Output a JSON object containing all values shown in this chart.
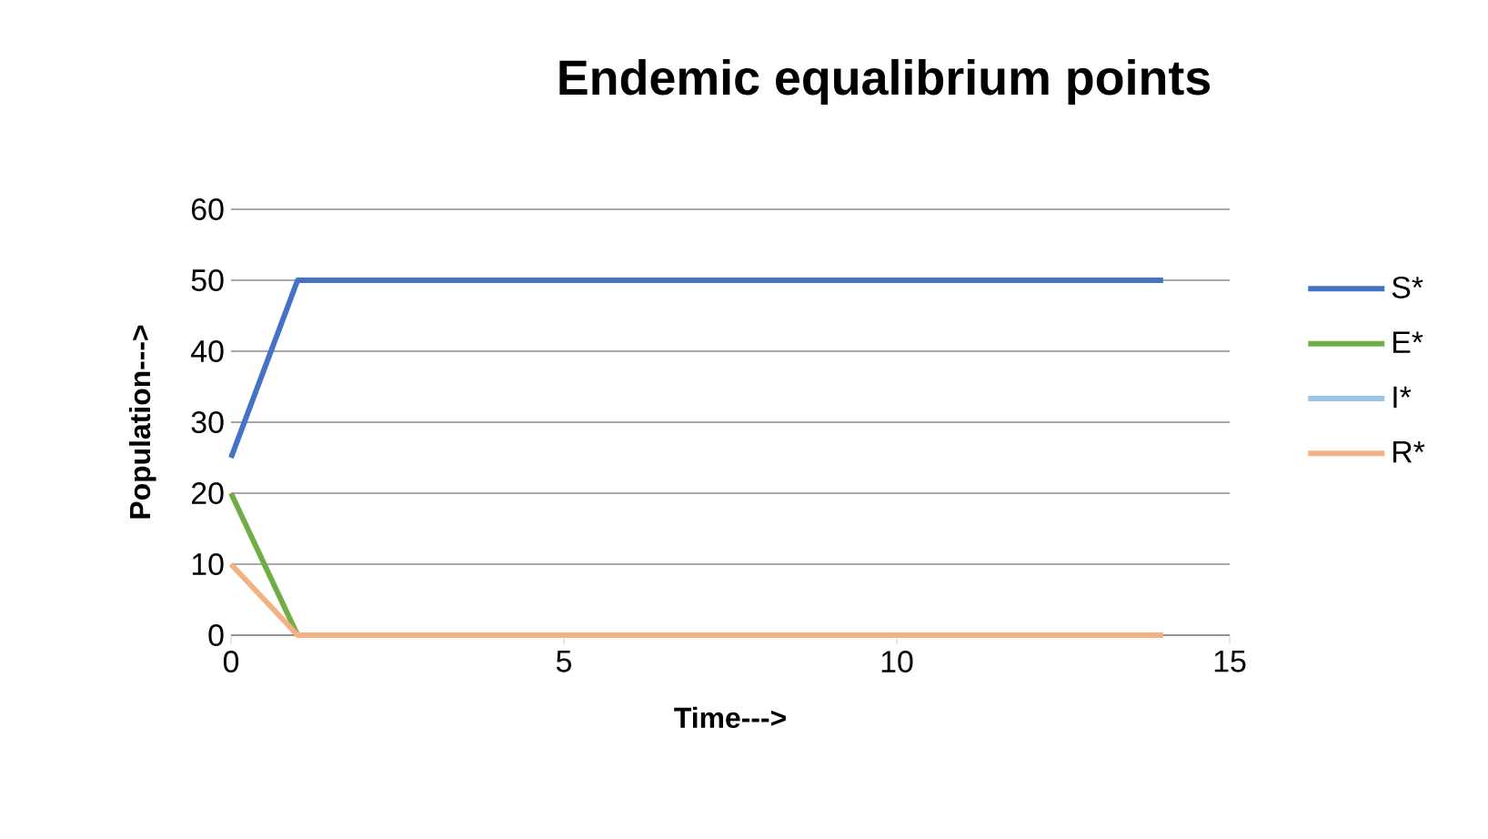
{
  "chart_data": {
    "type": "line",
    "title": "Endemic equalibrium points",
    "xlabel": "Time--->",
    "ylabel": "Population--->",
    "x": [
      0,
      1,
      2,
      3,
      4,
      5,
      6,
      7,
      8,
      9,
      10,
      11,
      12,
      13,
      14
    ],
    "series": [
      {
        "name": "S*",
        "color": "#4472c4",
        "values": [
          25,
          50,
          50,
          50,
          50,
          50,
          50,
          50,
          50,
          50,
          50,
          50,
          50,
          50,
          50
        ]
      },
      {
        "name": "E*",
        "color": "#70ad47",
        "values": [
          20,
          0,
          null,
          null,
          null,
          null,
          null,
          null,
          null,
          null,
          null,
          null,
          null,
          null,
          null
        ]
      },
      {
        "name": "I*",
        "color": "#9dc3e6",
        "values": [
          null,
          null,
          null,
          null,
          null,
          null,
          null,
          null,
          null,
          null,
          null,
          null,
          null,
          null,
          null
        ]
      },
      {
        "name": "R*",
        "color": "#f4b183",
        "values": [
          10,
          0,
          0,
          0,
          0,
          0,
          0,
          0,
          0,
          0,
          0,
          0,
          0,
          0,
          0
        ]
      }
    ],
    "xlim": [
      0,
      15
    ],
    "xticks": [
      0,
      5,
      10,
      15
    ],
    "ylim": [
      0,
      60
    ],
    "yticks": [
      0,
      10,
      20,
      30,
      40,
      50,
      60
    ],
    "grid": "y",
    "legend": "right",
    "marker": "none"
  }
}
